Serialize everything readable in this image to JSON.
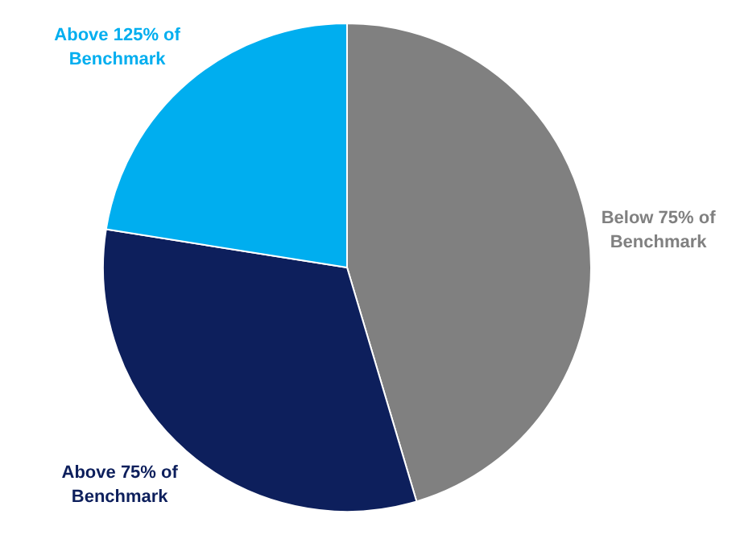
{
  "chart_data": {
    "type": "pie",
    "categories": [
      "Below 75% of Benchmark",
      "Above 75% of Benchmark",
      "Above 125% of Benchmark"
    ],
    "values": [
      45.4,
      32.1,
      22.5
    ],
    "colors": [
      "#808080",
      "#0d1f5c",
      "#00aeef"
    ],
    "legend": false
  }
}
